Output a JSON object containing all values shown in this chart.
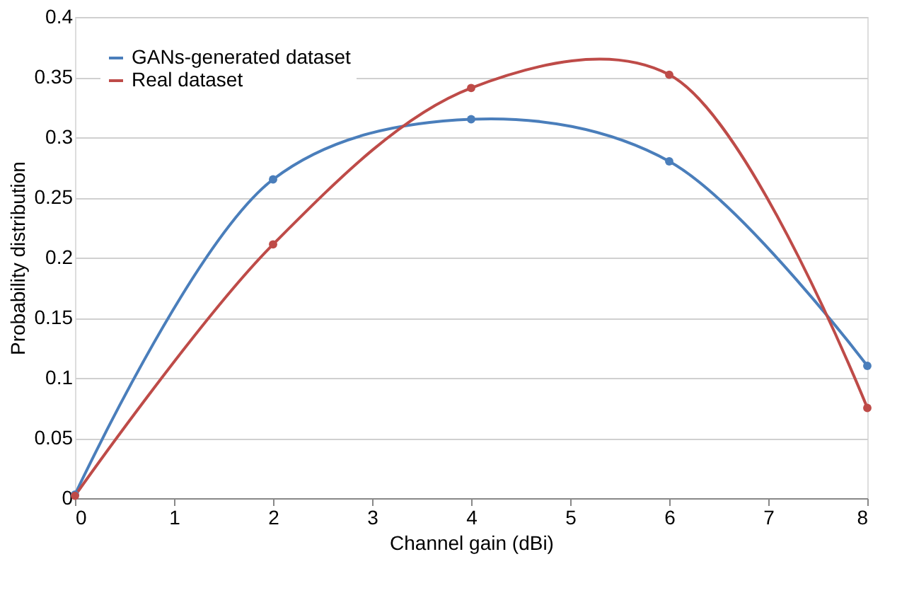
{
  "chart_data": {
    "type": "line",
    "xlabel": "Channel gain (dBi)",
    "ylabel": "Probability distribution",
    "x": [
      0,
      2,
      4,
      6,
      8
    ],
    "series": [
      {
        "name": "GANs-generated dataset",
        "color": "#4a7ebb",
        "values": [
          0.003,
          0.265,
          0.315,
          0.28,
          0.11
        ]
      },
      {
        "name": "Real dataset",
        "color": "#be4b48",
        "values": [
          0.002,
          0.211,
          0.341,
          0.352,
          0.075
        ]
      }
    ],
    "xlim": [
      0,
      8
    ],
    "xticks": [
      0,
      1,
      2,
      3,
      4,
      5,
      6,
      7,
      8
    ],
    "ylim": [
      0,
      0.4
    ],
    "yticks": [
      0,
      0.05,
      0.1,
      0.15,
      0.2,
      0.25,
      0.3,
      0.35,
      0.4
    ],
    "grid": "y",
    "legend": "top left",
    "marker": "circle",
    "line_style": "solid"
  }
}
